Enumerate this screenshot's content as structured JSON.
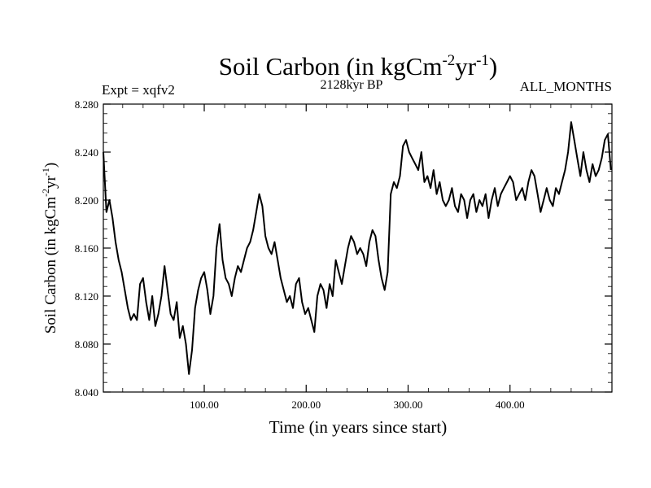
{
  "chart_data": {
    "type": "line",
    "title": {
      "prefix": "Soil Carbon (in kgCm",
      "sup1": "-2",
      "mid": "yr",
      "sup2": "-1",
      "suffix": ")"
    },
    "subtitle": "2128kyr BP",
    "left_label": "Expt = xqfv2",
    "right_label": "ALL_MONTHS",
    "xlabel": "Time (in years since start)",
    "ylabel": {
      "prefix": "Soil Carbon (in kgCm",
      "sup1": "-2",
      "mid": "yr",
      "sup2": "-1",
      "suffix": ")"
    },
    "xlim": [
      1,
      500
    ],
    "ylim": [
      8.04,
      8.28
    ],
    "x_ticks": [
      100,
      200,
      300,
      400
    ],
    "x_tick_labels": [
      "100.00",
      "200.00",
      "300.00",
      "400.00"
    ],
    "y_ticks": [
      8.04,
      8.08,
      8.12,
      8.16,
      8.2,
      8.24,
      8.28
    ],
    "y_tick_labels": [
      "8.040",
      "8.080",
      "8.120",
      "8.160",
      "8.200",
      "8.240",
      "8.280"
    ],
    "line_color": "#000000",
    "series": [
      {
        "name": "Soil Carbon",
        "x": [
          1,
          4,
          7,
          10,
          13,
          16,
          19,
          22,
          25,
          28,
          31,
          34,
          37,
          40,
          43,
          46,
          49,
          52,
          55,
          58,
          61,
          64,
          67,
          70,
          73,
          76,
          79,
          82,
          85,
          88,
          91,
          94,
          97,
          100,
          103,
          106,
          109,
          112,
          115,
          118,
          121,
          124,
          127,
          130,
          133,
          136,
          139,
          142,
          145,
          148,
          151,
          154,
          157,
          160,
          163,
          166,
          169,
          172,
          175,
          178,
          181,
          184,
          187,
          190,
          193,
          196,
          199,
          202,
          205,
          208,
          211,
          214,
          217,
          220,
          223,
          226,
          229,
          232,
          235,
          238,
          241,
          244,
          247,
          250,
          253,
          256,
          259,
          262,
          265,
          268,
          271,
          274,
          277,
          280,
          283,
          286,
          289,
          292,
          295,
          298,
          301,
          304,
          307,
          310,
          313,
          316,
          319,
          322,
          325,
          328,
          331,
          334,
          337,
          340,
          343,
          346,
          349,
          352,
          355,
          358,
          361,
          364,
          367,
          370,
          373,
          376,
          379,
          382,
          385,
          388,
          391,
          394,
          397,
          400,
          403,
          406,
          409,
          412,
          415,
          418,
          421,
          424,
          427,
          430,
          433,
          436,
          439,
          442,
          445,
          448,
          451,
          454,
          457,
          460,
          463,
          466,
          469,
          472,
          475,
          478,
          481,
          484,
          487,
          490,
          493,
          496,
          499
        ],
        "values": [
          8.24,
          8.19,
          8.2,
          8.185,
          8.165,
          8.15,
          8.14,
          8.125,
          8.11,
          8.1,
          8.105,
          8.1,
          8.13,
          8.135,
          8.115,
          8.1,
          8.12,
          8.095,
          8.105,
          8.12,
          8.145,
          8.125,
          8.105,
          8.1,
          8.115,
          8.085,
          8.095,
          8.08,
          8.055,
          8.075,
          8.11,
          8.125,
          8.135,
          8.14,
          8.125,
          8.105,
          8.12,
          8.16,
          8.18,
          8.15,
          8.135,
          8.13,
          8.12,
          8.135,
          8.145,
          8.14,
          8.15,
          8.16,
          8.165,
          8.175,
          8.19,
          8.205,
          8.195,
          8.17,
          8.16,
          8.155,
          8.165,
          8.15,
          8.135,
          8.125,
          8.115,
          8.12,
          8.11,
          8.13,
          8.135,
          8.115,
          8.105,
          8.11,
          8.1,
          8.09,
          8.12,
          8.13,
          8.125,
          8.11,
          8.13,
          8.12,
          8.15,
          8.14,
          8.13,
          8.145,
          8.16,
          8.17,
          8.165,
          8.155,
          8.16,
          8.155,
          8.145,
          8.165,
          8.175,
          8.17,
          8.15,
          8.135,
          8.125,
          8.14,
          8.205,
          8.215,
          8.21,
          8.22,
          8.245,
          8.25,
          8.24,
          8.235,
          8.23,
          8.225,
          8.24,
          8.215,
          8.22,
          8.21,
          8.225,
          8.205,
          8.215,
          8.2,
          8.195,
          8.2,
          8.21,
          8.195,
          8.19,
          8.205,
          8.2,
          8.185,
          8.2,
          8.205,
          8.19,
          8.2,
          8.195,
          8.205,
          8.185,
          8.2,
          8.21,
          8.195,
          8.205,
          8.21,
          8.215,
          8.22,
          8.215,
          8.2,
          8.205,
          8.21,
          8.2,
          8.215,
          8.225,
          8.22,
          8.205,
          8.19,
          8.2,
          8.21,
          8.2,
          8.195,
          8.21,
          8.205,
          8.215,
          8.225,
          8.24,
          8.265,
          8.25,
          8.235,
          8.22,
          8.24,
          8.225,
          8.215,
          8.23,
          8.22,
          8.225,
          8.235,
          8.25,
          8.255,
          8.225
        ]
      }
    ]
  }
}
